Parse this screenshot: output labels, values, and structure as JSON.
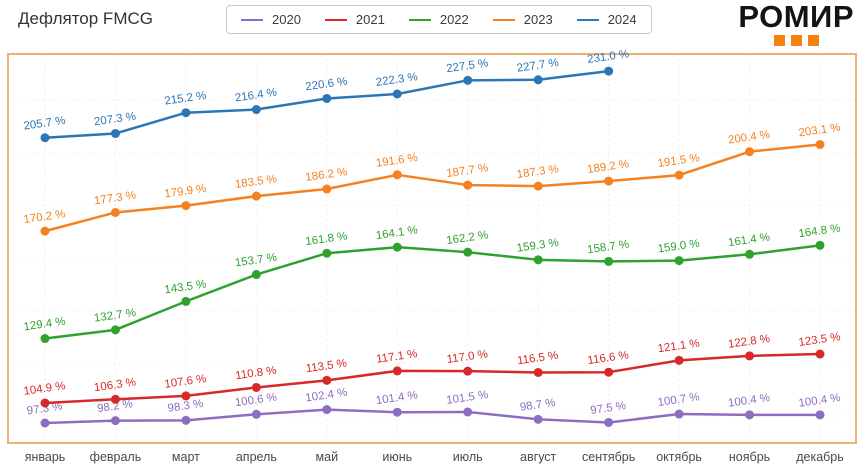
{
  "header": {
    "title": "Дефлятор FMCG",
    "logo_text": "РОМИР",
    "logo_accent_color": "#f5820d"
  },
  "chart_data": {
    "type": "line",
    "categories": [
      "январь",
      "февраль",
      "март",
      "апрель",
      "май",
      "июнь",
      "июль",
      "август",
      "сентябрь",
      "октябрь",
      "ноябрь",
      "декабрь"
    ],
    "series": [
      {
        "name": "2020",
        "color": "#8e6cc0",
        "values": [
          97.3,
          98.2,
          98.3,
          100.6,
          102.4,
          101.4,
          101.5,
          98.7,
          97.5,
          100.7,
          100.4,
          100.4
        ]
      },
      {
        "name": "2021",
        "color": "#d7282a",
        "values": [
          104.9,
          106.3,
          107.6,
          110.8,
          113.5,
          117.1,
          117.0,
          116.5,
          116.6,
          121.1,
          122.8,
          123.5
        ]
      },
      {
        "name": "2022",
        "color": "#2ea12e",
        "values": [
          129.4,
          132.7,
          143.5,
          153.7,
          161.8,
          164.1,
          162.2,
          159.3,
          158.7,
          159.0,
          161.4,
          164.8
        ]
      },
      {
        "name": "2023",
        "color": "#f58220",
        "values": [
          170.2,
          177.3,
          179.9,
          183.5,
          186.2,
          191.6,
          187.7,
          187.3,
          189.2,
          191.5,
          200.4,
          203.1
        ]
      },
      {
        "name": "2024",
        "color": "#2d75b5",
        "values": [
          205.7,
          207.3,
          215.2,
          216.4,
          220.6,
          222.3,
          227.5,
          227.7,
          231.0
        ]
      }
    ],
    "value_suffix": " %",
    "title": "Дефлятор FMCG",
    "xlabel": "",
    "ylabel": "",
    "ylim": [
      89.7,
      237.5
    ],
    "grid": true,
    "legend_position": "top",
    "plot_border_color": "#eab272",
    "gridline_color": "#ededed"
  }
}
